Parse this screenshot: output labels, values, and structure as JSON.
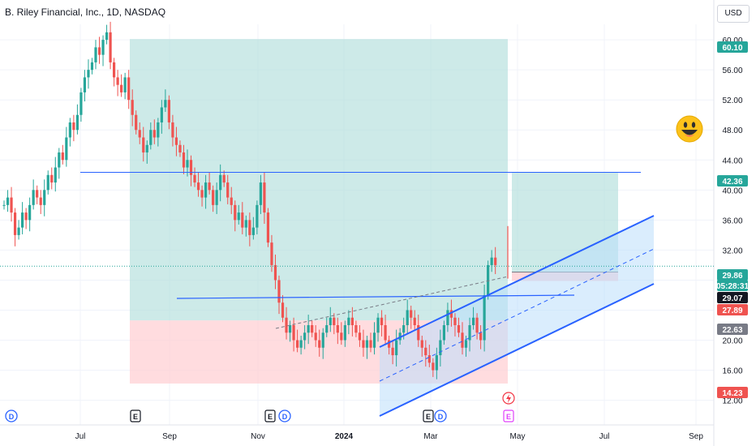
{
  "header": {
    "title": "B. Riley Financial, Inc., 1D, NASDAQ",
    "currency": "USD"
  },
  "emoji_icon": "smiley-face-icon",
  "colors": {
    "up": "#26a69a",
    "down": "#ef5350",
    "profit_zone": "#b2dfdb",
    "loss_zone": "#ffcdd2",
    "channel": "#2962ff",
    "channel_fill": "#bbdefb",
    "grid": "#f0f3fa"
  },
  "chart_data": {
    "type": "candlestick",
    "ylim": [
      10,
      62
    ],
    "x_ticks": [
      "Jul",
      "Sep",
      "Nov",
      "2024",
      "Mar",
      "May",
      "Jul",
      "Sep"
    ],
    "y_ticks": [
      "60.00",
      "56.00",
      "52.00",
      "48.00",
      "44.00",
      "40.00",
      "36.00",
      "32.00",
      "28.00",
      "24.00",
      "20.00",
      "16.00",
      "12.00"
    ],
    "price_labels": [
      {
        "name": "upper-target",
        "text": "60.10",
        "value": 60.1,
        "color": "#26a69a"
      },
      {
        "name": "resistance",
        "text": "42.36",
        "value": 42.36,
        "color": "#26a69a"
      },
      {
        "name": "last-price",
        "text": "29.86",
        "value": 29.86,
        "color": "#26a69a"
      },
      {
        "name": "countdown",
        "text": "05:28:31",
        "value": 29.86,
        "color": "#26a69a"
      },
      {
        "name": "entry",
        "text": "29.07",
        "value": 29.07,
        "color": "#131722"
      },
      {
        "name": "stop",
        "text": "27.89",
        "value": 27.89,
        "color": "#ef5350"
      },
      {
        "name": "entry-low",
        "text": "22.63",
        "value": 22.63,
        "color": "#787b86"
      },
      {
        "name": "lower-stop",
        "text": "14.23",
        "value": 14.23,
        "color": "#ef5350"
      }
    ],
    "event_markers": [
      {
        "label": "D",
        "kind": "dividend"
      },
      {
        "label": "E",
        "kind": "earnings"
      },
      {
        "label": "E",
        "kind": "earnings"
      },
      {
        "label": "D",
        "kind": "dividend"
      },
      {
        "label": "E",
        "kind": "earnings"
      },
      {
        "label": "D",
        "kind": "dividend"
      },
      {
        "label": "E",
        "kind": "earnings-upcoming"
      }
    ],
    "close_series": [
      38,
      39,
      37,
      34,
      35,
      37,
      36,
      38,
      40,
      39,
      38,
      40,
      42,
      41,
      43,
      45,
      44,
      47,
      49,
      48,
      50,
      53,
      55,
      56,
      57,
      59,
      58,
      60,
      61,
      57,
      55,
      54,
      53,
      55,
      52,
      50,
      48,
      47,
      45,
      46,
      48,
      47,
      49,
      51,
      52,
      49,
      47,
      46,
      45,
      43,
      44,
      42,
      41,
      40,
      39,
      41,
      40,
      38,
      40,
      42,
      41,
      39,
      38,
      36,
      37,
      35,
      36,
      34,
      35,
      38,
      41,
      37,
      33,
      30,
      28,
      25,
      23,
      21,
      22,
      20,
      19,
      20,
      21,
      22,
      21,
      20,
      19,
      21,
      22,
      23,
      22,
      21,
      20,
      22,
      23,
      22,
      21,
      20,
      19,
      20,
      19,
      21,
      23,
      22,
      20,
      19,
      18,
      20,
      21,
      22,
      24,
      23,
      22,
      20,
      19,
      18,
      17,
      16,
      18,
      20,
      22,
      24,
      23,
      22,
      21,
      19,
      20,
      22,
      23,
      21,
      20,
      26,
      30,
      31,
      30
    ]
  }
}
